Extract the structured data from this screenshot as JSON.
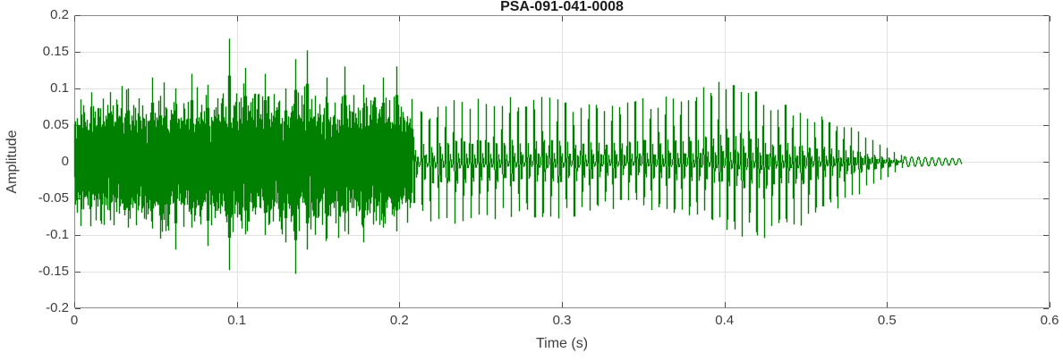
{
  "colors": {
    "background": "#ffffff",
    "waveform": "#008000",
    "grid": "#e2e2e2",
    "axis_box": "#8c8c8c",
    "tick_mark": "#4d4d4d",
    "tick_label": "#3d3d3d",
    "axis_label": "#3d3d3d",
    "title": "#1a1a1a"
  },
  "chart_data": {
    "type": "line",
    "title": "PSA-091-041-0008",
    "xlabel": "Time (s)",
    "ylabel": "Amplitude",
    "xlim": [
      0,
      0.6
    ],
    "ylim": [
      -0.2,
      0.2
    ],
    "xticks": {
      "values": [
        0,
        0.1,
        0.2,
        0.3,
        0.4,
        0.5,
        0.6
      ],
      "labels": [
        "0",
        "0.1",
        "0.2",
        "0.3",
        "0.4",
        "0.5",
        "0.6"
      ]
    },
    "yticks": {
      "values": [
        0.2,
        0.15,
        0.1,
        0.05,
        0,
        -0.05,
        -0.1,
        -0.15,
        -0.2
      ],
      "labels": [
        "0.2",
        "0.15",
        "0.1",
        "0.05",
        "0",
        "-0.05",
        "-0.1",
        "-0.15",
        "-0.2"
      ]
    },
    "grid": true,
    "legend": false,
    "series": [
      {
        "name": "speech waveform",
        "color": "#008000"
      }
    ],
    "waveform": {
      "duration_s": 0.546,
      "segments": [
        {
          "kind": "noise",
          "t_start": 0.0,
          "t_end": 0.208
        },
        {
          "kind": "voiced",
          "t_start": 0.208,
          "t_end": 0.51,
          "f0_start_hz": 198,
          "f0_slope_hz_per_s": 100
        },
        {
          "kind": "tail",
          "t_start": 0.51,
          "t_end": 0.546,
          "freq_hz": 240
        }
      ],
      "noise_core_envelope": [
        [
          0.0,
          0.04
        ],
        [
          0.004,
          0.05
        ],
        [
          0.02,
          0.056
        ],
        [
          0.05,
          0.06
        ],
        [
          0.09,
          0.058
        ],
        [
          0.1,
          0.062
        ],
        [
          0.13,
          0.06
        ],
        [
          0.15,
          0.062
        ],
        [
          0.17,
          0.058
        ],
        [
          0.19,
          0.056
        ],
        [
          0.206,
          0.052
        ]
      ],
      "noise_spikes": [
        {
          "t": 0.01,
          "max": 0.075,
          "min": -0.088
        },
        {
          "t": 0.022,
          "max": 0.095,
          "min": -0.08
        },
        {
          "t": 0.033,
          "max": 0.1,
          "min": -0.09
        },
        {
          "t": 0.048,
          "max": 0.115,
          "min": -0.085
        },
        {
          "t": 0.053,
          "max": 0.09,
          "min": -0.105
        },
        {
          "t": 0.062,
          "max": 0.1,
          "min": -0.12
        },
        {
          "t": 0.072,
          "max": 0.12,
          "min": -0.09
        },
        {
          "t": 0.082,
          "max": 0.105,
          "min": -0.115
        },
        {
          "t": 0.095,
          "max": 0.168,
          "min": -0.148
        },
        {
          "t": 0.105,
          "max": 0.128,
          "min": -0.095
        },
        {
          "t": 0.117,
          "max": 0.12,
          "min": -0.1
        },
        {
          "t": 0.13,
          "max": 0.1,
          "min": -0.11
        },
        {
          "t": 0.136,
          "max": 0.14,
          "min": -0.153
        },
        {
          "t": 0.143,
          "max": 0.152,
          "min": -0.12
        },
        {
          "t": 0.155,
          "max": 0.115,
          "min": -0.1
        },
        {
          "t": 0.166,
          "max": 0.13,
          "min": -0.095
        },
        {
          "t": 0.178,
          "max": 0.105,
          "min": -0.11
        },
        {
          "t": 0.19,
          "max": 0.115,
          "min": -0.09
        },
        {
          "t": 0.198,
          "max": 0.13,
          "min": -0.095
        }
      ],
      "voiced_envelope": [
        [
          0.208,
          0.05,
          -0.05
        ],
        [
          0.215,
          0.065,
          -0.072
        ],
        [
          0.225,
          0.07,
          -0.08
        ],
        [
          0.24,
          0.08,
          -0.078
        ],
        [
          0.26,
          0.082,
          -0.072
        ],
        [
          0.28,
          0.08,
          -0.07
        ],
        [
          0.3,
          0.078,
          -0.072
        ],
        [
          0.32,
          0.076,
          -0.062
        ],
        [
          0.34,
          0.076,
          -0.056
        ],
        [
          0.36,
          0.082,
          -0.06
        ],
        [
          0.38,
          0.092,
          -0.068
        ],
        [
          0.395,
          0.1,
          -0.08
        ],
        [
          0.41,
          0.096,
          -0.092
        ],
        [
          0.425,
          0.082,
          -0.096
        ],
        [
          0.44,
          0.07,
          -0.088
        ],
        [
          0.455,
          0.06,
          -0.075
        ],
        [
          0.468,
          0.052,
          -0.06
        ],
        [
          0.48,
          0.042,
          -0.046
        ],
        [
          0.492,
          0.028,
          -0.03
        ],
        [
          0.503,
          0.016,
          -0.017
        ],
        [
          0.51,
          0.009,
          -0.009
        ]
      ],
      "tail_envelope": [
        [
          0.51,
          0.0075
        ],
        [
          0.546,
          0.0045
        ]
      ]
    }
  }
}
